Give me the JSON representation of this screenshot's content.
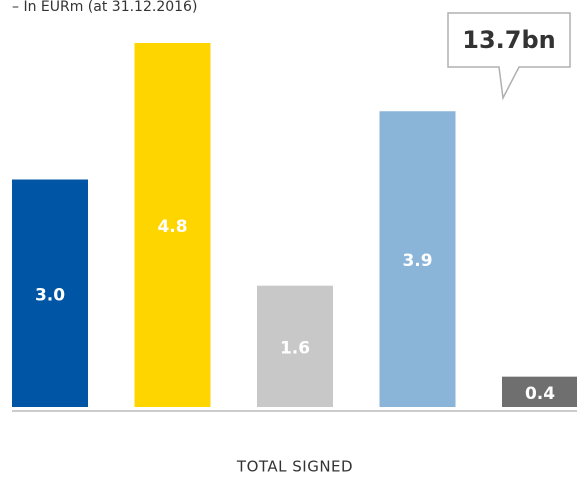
{
  "chart_data": {
    "type": "bar",
    "subtitle": "– In EURm (at 31.12.2016)",
    "annotation": "13.7bn",
    "x_label": "TOTAL SIGNED",
    "categories": [
      null,
      null,
      null,
      null,
      null
    ],
    "values": [
      3.0,
      4.8,
      1.6,
      3.9,
      0.4
    ],
    "value_labels": [
      "3.0",
      "4.8",
      "1.6",
      "3.9",
      "0.4"
    ],
    "colors": [
      "#0055a4",
      "#ffd500",
      "#c8c8c8",
      "#8ab4d8",
      "#6f6f6f"
    ]
  }
}
